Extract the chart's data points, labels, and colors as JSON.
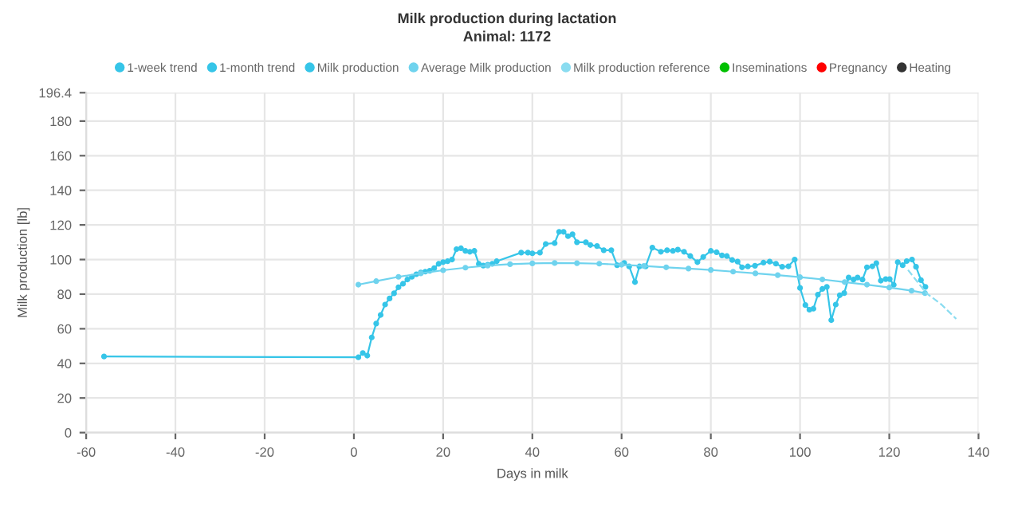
{
  "chart_data": {
    "type": "line",
    "title": "Milk production during lactation",
    "subtitle": "Animal: 1172",
    "xlabel": "Days in milk",
    "ylabel": "Milk production [lb]",
    "xlim": [
      -60,
      140
    ],
    "xticks": [
      -60,
      -40,
      -20,
      0,
      20,
      40,
      60,
      80,
      100,
      120,
      140
    ],
    "ylim": [
      0,
      196.4
    ],
    "yticks": [
      0,
      20,
      40,
      60,
      80,
      100,
      120,
      140,
      160,
      180,
      196.4
    ],
    "grid": true,
    "legend": "top",
    "marker": "circle",
    "series": [
      {
        "name": "1-week trend",
        "color": "#36c5e8",
        "x": [
          -56,
          1,
          2,
          3,
          4,
          5,
          6,
          7,
          8,
          9,
          10,
          11,
          12,
          13,
          14,
          15,
          16,
          17,
          18,
          19,
          20,
          21,
          22,
          23,
          24,
          25,
          26,
          27,
          28,
          29,
          30,
          31,
          32,
          37.5,
          39,
          40,
          41.7,
          43,
          45,
          46,
          47,
          48,
          49,
          50,
          52,
          53,
          54.5,
          56,
          57.7,
          59,
          60.6,
          61.7,
          63,
          64,
          65.4,
          66.9,
          68.8,
          70.2,
          71.5,
          72.6,
          74,
          75.4,
          77,
          78.3,
          80,
          81.3,
          82.5,
          83.6,
          84.8,
          86,
          87,
          88.3,
          89.9,
          91.8,
          93.2,
          94.6,
          96,
          97.4,
          98.8,
          100,
          101.2,
          102.1,
          103,
          104,
          105,
          106,
          107,
          108,
          108.9,
          109.9,
          110.9,
          112,
          112.9,
          114,
          115,
          116.2,
          117.1,
          118.1,
          119.2,
          120.1,
          121,
          121.9,
          123,
          123.9,
          125.1,
          126,
          127.1,
          128.1
        ],
        "values": [
          44,
          43.5,
          46,
          44.5,
          55,
          63,
          68,
          74,
          77.5,
          80.5,
          84,
          86,
          88.5,
          90,
          91.5,
          92.5,
          93,
          93.5,
          95,
          97.5,
          98.5,
          99,
          100,
          106,
          106.5,
          105,
          104.5,
          105,
          97.5,
          96.5,
          97,
          97.5,
          99,
          104,
          104,
          103.6,
          104,
          109,
          109.5,
          116,
          116,
          113.5,
          114.6,
          110,
          110,
          108.4,
          107.8,
          105.4,
          105.4,
          96.7,
          98,
          96,
          87,
          96,
          96,
          106.9,
          104.5,
          105.4,
          105,
          105.7,
          104.5,
          102,
          98.5,
          101.5,
          105,
          104.2,
          102.4,
          102,
          99.7,
          98.8,
          95.5,
          96,
          96.4,
          98.2,
          98.8,
          97.6,
          95.8,
          96.1,
          100,
          83.6,
          73.7,
          71,
          71.6,
          79.7,
          83,
          84.2,
          65,
          74,
          79.4,
          80.6,
          89.6,
          88.4,
          89.6,
          88.4,
          95.5,
          96.1,
          97.9,
          87.8,
          88.7,
          88.7,
          85.4,
          98.5,
          96.7,
          99.1,
          100,
          95.8,
          88.1,
          84.2
        ]
      },
      {
        "name": "1-month trend",
        "color": "#36c5e8"
      },
      {
        "name": "Milk production",
        "color": "#36c5e8"
      },
      {
        "name": "Average Milk production",
        "color": "#6fd3ee",
        "x": [
          1,
          5,
          10,
          15,
          20,
          25,
          30,
          35,
          40,
          45,
          50,
          55,
          60,
          65,
          70,
          75,
          80,
          85,
          90,
          95,
          100,
          105,
          110,
          115,
          120,
          125,
          128
        ],
        "values": [
          85.5,
          87.5,
          90,
          92,
          93.8,
          95.3,
          96.5,
          97.3,
          97.8,
          98,
          97.9,
          97.6,
          97,
          96.3,
          95.5,
          94.8,
          94,
          93,
          92,
          91,
          89.8,
          88.5,
          87,
          85.5,
          83.8,
          82,
          80.6
        ]
      },
      {
        "name": "Milk production reference",
        "color": "#8adcf0",
        "line_style": "dashed",
        "marker": "none",
        "x": [
          124.2,
          128.3,
          131.7,
          135
        ],
        "values": [
          94,
          80.6,
          74,
          65.7
        ]
      },
      {
        "name": "Inseminations",
        "color": "#00c000"
      },
      {
        "name": "Pregnancy",
        "color": "#ff0000"
      },
      {
        "name": "Heating",
        "color": "#333333"
      }
    ]
  }
}
